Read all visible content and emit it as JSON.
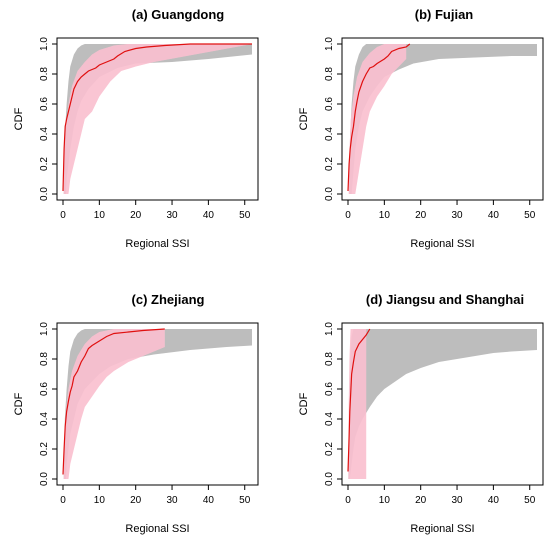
{
  "chart_data": [
    {
      "type": "area",
      "title": "(a) Guangdong",
      "xlabel": "Regional SSI",
      "ylabel": "CDF",
      "xlim": [
        0,
        52
      ],
      "ylim": [
        0,
        1
      ],
      "xticks": [
        0,
        10,
        20,
        30,
        40,
        50
      ],
      "yticks": [
        0.0,
        0.2,
        0.4,
        0.6,
        0.8,
        1.0
      ],
      "grey_band": {
        "upper": [
          [
            0.2,
            0.0
          ],
          [
            0.5,
            0.4
          ],
          [
            1,
            0.6
          ],
          [
            1.5,
            0.75
          ],
          [
            2,
            0.85
          ],
          [
            3,
            0.93
          ],
          [
            4,
            0.97
          ],
          [
            5,
            0.99
          ],
          [
            6,
            1.0
          ],
          [
            52,
            1.0
          ]
        ],
        "lower": [
          [
            0.8,
            0.0
          ],
          [
            1,
            0.1
          ],
          [
            1.5,
            0.2
          ],
          [
            2,
            0.3
          ],
          [
            3,
            0.45
          ],
          [
            4,
            0.55
          ],
          [
            5,
            0.62
          ],
          [
            7,
            0.7
          ],
          [
            10,
            0.78
          ],
          [
            15,
            0.84
          ],
          [
            20,
            0.87
          ],
          [
            30,
            0.88
          ],
          [
            40,
            0.9
          ],
          [
            52,
            0.93
          ]
        ]
      },
      "pink_band": {
        "upper": [
          [
            0.2,
            0.0
          ],
          [
            0.4,
            0.3
          ],
          [
            0.8,
            0.45
          ],
          [
            1.5,
            0.6
          ],
          [
            2.5,
            0.72
          ],
          [
            4,
            0.82
          ],
          [
            6,
            0.88
          ],
          [
            8,
            0.93
          ],
          [
            10,
            0.96
          ],
          [
            14,
            0.99
          ],
          [
            18,
            1.0
          ],
          [
            52,
            1.0
          ]
        ],
        "lower": [
          [
            1.5,
            0.0
          ],
          [
            2,
            0.1
          ],
          [
            3,
            0.2
          ],
          [
            4,
            0.3
          ],
          [
            5,
            0.4
          ],
          [
            6,
            0.5
          ],
          [
            8,
            0.55
          ],
          [
            10,
            0.65
          ],
          [
            13,
            0.75
          ],
          [
            16,
            0.82
          ],
          [
            20,
            0.85
          ],
          [
            25,
            0.88
          ]
        ]
      },
      "red_line": [
        [
          0,
          0.02
        ],
        [
          0.3,
          0.3
        ],
        [
          0.6,
          0.45
        ],
        [
          1,
          0.5
        ],
        [
          1.5,
          0.55
        ],
        [
          2,
          0.6
        ],
        [
          2.5,
          0.65
        ],
        [
          3,
          0.7
        ],
        [
          4,
          0.75
        ],
        [
          5,
          0.78
        ],
        [
          6,
          0.8
        ],
        [
          7,
          0.82
        ],
        [
          9,
          0.84
        ],
        [
          10,
          0.86
        ],
        [
          12,
          0.88
        ],
        [
          14,
          0.9
        ],
        [
          15,
          0.92
        ],
        [
          17,
          0.95
        ],
        [
          20,
          0.97
        ],
        [
          23,
          0.98
        ],
        [
          28,
          0.99
        ],
        [
          35,
          1.0
        ],
        [
          52,
          1.0
        ]
      ]
    },
    {
      "type": "area",
      "title": "(b) Fujian",
      "xlabel": "Regional SSI",
      "ylabel": "CDF",
      "xlim": [
        0,
        52
      ],
      "ylim": [
        0,
        1
      ],
      "xticks": [
        0,
        10,
        20,
        30,
        40,
        50
      ],
      "yticks": [
        0.0,
        0.2,
        0.4,
        0.6,
        0.8,
        1.0
      ],
      "grey_band": {
        "upper": [
          [
            0.3,
            0.0
          ],
          [
            0.6,
            0.4
          ],
          [
            1,
            0.6
          ],
          [
            1.5,
            0.75
          ],
          [
            2,
            0.85
          ],
          [
            3,
            0.93
          ],
          [
            4,
            0.98
          ],
          [
            5,
            1.0
          ],
          [
            52,
            1.0
          ]
        ],
        "lower": [
          [
            1,
            0.0
          ],
          [
            1.5,
            0.15
          ],
          [
            2,
            0.3
          ],
          [
            3,
            0.45
          ],
          [
            4,
            0.55
          ],
          [
            6,
            0.65
          ],
          [
            8,
            0.72
          ],
          [
            10,
            0.78
          ],
          [
            14,
            0.83
          ],
          [
            18,
            0.87
          ],
          [
            25,
            0.9
          ],
          [
            35,
            0.91
          ],
          [
            45,
            0.92
          ],
          [
            52,
            0.92
          ]
        ]
      },
      "pink_band": {
        "upper": [
          [
            0.2,
            0.0
          ],
          [
            0.4,
            0.3
          ],
          [
            0.8,
            0.5
          ],
          [
            1.5,
            0.65
          ],
          [
            2.5,
            0.78
          ],
          [
            4,
            0.88
          ],
          [
            6,
            0.94
          ],
          [
            8,
            0.98
          ],
          [
            10,
            1.0
          ],
          [
            16,
            1.0
          ]
        ],
        "lower": [
          [
            2,
            0.0
          ],
          [
            3,
            0.15
          ],
          [
            4,
            0.3
          ],
          [
            5,
            0.45
          ],
          [
            6,
            0.55
          ],
          [
            8,
            0.65
          ],
          [
            10,
            0.72
          ],
          [
            12,
            0.8
          ],
          [
            14,
            0.85
          ],
          [
            16,
            0.9
          ]
        ]
      },
      "red_line": [
        [
          0,
          0.02
        ],
        [
          0.3,
          0.2
        ],
        [
          0.6,
          0.3
        ],
        [
          1,
          0.38
        ],
        [
          1.5,
          0.45
        ],
        [
          2,
          0.55
        ],
        [
          2.5,
          0.62
        ],
        [
          3,
          0.68
        ],
        [
          4,
          0.75
        ],
        [
          5,
          0.8
        ],
        [
          6,
          0.84
        ],
        [
          7,
          0.85
        ],
        [
          8,
          0.87
        ],
        [
          10,
          0.9
        ],
        [
          11,
          0.92
        ],
        [
          12,
          0.95
        ],
        [
          14,
          0.97
        ],
        [
          16,
          0.98
        ],
        [
          17,
          1.0
        ]
      ]
    },
    {
      "type": "area",
      "title": "(c) Zhejiang",
      "xlabel": "Regional SSI",
      "ylabel": "CDF",
      "xlim": [
        0,
        52
      ],
      "ylim": [
        0,
        1
      ],
      "xticks": [
        0,
        10,
        20,
        30,
        40,
        50
      ],
      "yticks": [
        0.0,
        0.2,
        0.4,
        0.6,
        0.8,
        1.0
      ],
      "grey_band": {
        "upper": [
          [
            0.2,
            0.0
          ],
          [
            0.5,
            0.4
          ],
          [
            1,
            0.6
          ],
          [
            1.5,
            0.75
          ],
          [
            2,
            0.85
          ],
          [
            3,
            0.93
          ],
          [
            4,
            0.97
          ],
          [
            5,
            0.99
          ],
          [
            6,
            1.0
          ],
          [
            52,
            1.0
          ]
        ],
        "lower": [
          [
            0.8,
            0.0
          ],
          [
            1,
            0.1
          ],
          [
            1.5,
            0.2
          ],
          [
            2,
            0.3
          ],
          [
            3,
            0.4
          ],
          [
            4,
            0.5
          ],
          [
            6,
            0.6
          ],
          [
            8,
            0.65
          ],
          [
            10,
            0.7
          ],
          [
            13,
            0.75
          ],
          [
            18,
            0.8
          ],
          [
            25,
            0.83
          ],
          [
            35,
            0.86
          ],
          [
            45,
            0.88
          ],
          [
            52,
            0.89
          ]
        ]
      },
      "pink_band": {
        "upper": [
          [
            0.2,
            0.0
          ],
          [
            0.4,
            0.3
          ],
          [
            0.8,
            0.45
          ],
          [
            1.5,
            0.6
          ],
          [
            2.5,
            0.72
          ],
          [
            4,
            0.82
          ],
          [
            6,
            0.9
          ],
          [
            8,
            0.95
          ],
          [
            10,
            0.98
          ],
          [
            14,
            1.0
          ],
          [
            28,
            1.0
          ]
        ],
        "lower": [
          [
            1.5,
            0.0
          ],
          [
            2,
            0.1
          ],
          [
            3,
            0.2
          ],
          [
            4,
            0.3
          ],
          [
            5,
            0.4
          ],
          [
            6,
            0.48
          ],
          [
            8,
            0.55
          ],
          [
            10,
            0.62
          ],
          [
            12,
            0.68
          ],
          [
            14,
            0.72
          ],
          [
            18,
            0.78
          ],
          [
            22,
            0.82
          ],
          [
            28,
            0.88
          ]
        ]
      },
      "red_line": [
        [
          0,
          0.03
        ],
        [
          0.3,
          0.2
        ],
        [
          0.6,
          0.35
        ],
        [
          1,
          0.45
        ],
        [
          1.5,
          0.52
        ],
        [
          2,
          0.58
        ],
        [
          2.5,
          0.62
        ],
        [
          3,
          0.68
        ],
        [
          4,
          0.72
        ],
        [
          5,
          0.78
        ],
        [
          6,
          0.82
        ],
        [
          7,
          0.87
        ],
        [
          8,
          0.89
        ],
        [
          10,
          0.92
        ],
        [
          12,
          0.95
        ],
        [
          14,
          0.97
        ],
        [
          18,
          0.98
        ],
        [
          22,
          0.99
        ],
        [
          28,
          1.0
        ]
      ]
    },
    {
      "type": "area",
      "title": "(d) Jiangsu and Shanghai",
      "xlabel": "Regional SSI",
      "ylabel": "CDF",
      "xlim": [
        0,
        52
      ],
      "ylim": [
        0,
        1
      ],
      "xticks": [
        0,
        10,
        20,
        30,
        40,
        50
      ],
      "yticks": [
        0.0,
        0.2,
        0.4,
        0.6,
        0.8,
        1.0
      ],
      "grey_band": {
        "upper": [
          [
            0.1,
            0.0
          ],
          [
            0.3,
            0.5
          ],
          [
            0.6,
            0.8
          ],
          [
            1,
            0.95
          ],
          [
            1.5,
            1.0
          ],
          [
            52,
            1.0
          ]
        ],
        "lower": [
          [
            0.5,
            0.0
          ],
          [
            1,
            0.1
          ],
          [
            1.5,
            0.2
          ],
          [
            2,
            0.28
          ],
          [
            3,
            0.35
          ],
          [
            4,
            0.4
          ],
          [
            6,
            0.48
          ],
          [
            8,
            0.55
          ],
          [
            10,
            0.6
          ],
          [
            13,
            0.65
          ],
          [
            16,
            0.7
          ],
          [
            20,
            0.74
          ],
          [
            25,
            0.78
          ],
          [
            30,
            0.8
          ],
          [
            35,
            0.82
          ],
          [
            40,
            0.84
          ],
          [
            45,
            0.85
          ],
          [
            52,
            0.86
          ]
        ]
      },
      "pink_band": {
        "upper": [
          [
            0.1,
            0.0
          ],
          [
            0.2,
            0.5
          ],
          [
            0.4,
            0.8
          ],
          [
            0.7,
            1.0
          ],
          [
            5,
            1.0
          ]
        ],
        "lower": [
          [
            5,
            0.0
          ],
          [
            5,
            1.0
          ]
        ]
      },
      "red_line": [
        [
          0,
          0.05
        ],
        [
          0.2,
          0.2
        ],
        [
          0.5,
          0.45
        ],
        [
          0.8,
          0.6
        ],
        [
          1,
          0.7
        ],
        [
          1.5,
          0.78
        ],
        [
          2,
          0.85
        ],
        [
          3,
          0.9
        ],
        [
          4,
          0.93
        ],
        [
          5,
          0.96
        ],
        [
          6,
          1.0
        ]
      ]
    }
  ]
}
